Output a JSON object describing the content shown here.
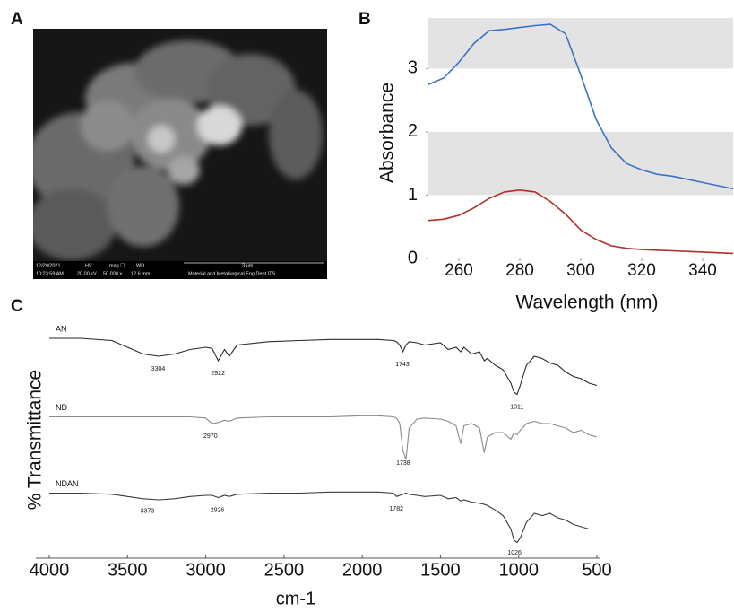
{
  "sem_image": {
    "panel_label": "A",
    "info_bar": [
      "12/29/2021",
      "10:23:59 AM",
      "HV",
      "20.00 kV",
      "mag ☐",
      "50 000 x",
      "WD",
      "12.6 mm",
      "3 μm",
      "Material and Metallurgical Eng Dept ITS"
    ]
  },
  "chart_data": [
    {
      "type": "line",
      "panel_label": "B",
      "y_label": "Absorbance",
      "x_label": "Wavelength (nm)",
      "x": [
        250,
        255,
        260,
        265,
        270,
        275,
        280,
        285,
        290,
        295,
        300,
        305,
        310,
        315,
        320,
        325,
        330,
        335,
        340,
        345,
        350
      ],
      "xlim": [
        250,
        350
      ],
      "xticks": [
        260,
        280,
        300,
        320,
        340
      ],
      "ylim": [
        0,
        3.8
      ],
      "yticks": [
        0,
        1,
        2,
        3
      ],
      "grid": "bands",
      "series": [
        {
          "color": "#3b73c4",
          "values": [
            2.75,
            2.85,
            3.1,
            3.4,
            3.6,
            3.62,
            3.65,
            3.68,
            3.7,
            3.55,
            2.9,
            2.2,
            1.75,
            1.5,
            1.4,
            1.33,
            1.3,
            1.25,
            1.2,
            1.15,
            1.1
          ]
        },
        {
          "color": "#b0302a",
          "values": [
            0.6,
            0.62,
            0.68,
            0.8,
            0.95,
            1.05,
            1.08,
            1.05,
            0.9,
            0.7,
            0.45,
            0.3,
            0.2,
            0.16,
            0.14,
            0.13,
            0.12,
            0.11,
            0.1,
            0.09,
            0.08
          ]
        }
      ]
    },
    {
      "type": "spectra",
      "panel_label": "C",
      "y_label": "% Transmittance",
      "x_label": "cm-1",
      "x": [
        4000,
        3800,
        3600,
        3500,
        3400,
        3300,
        3200,
        3100,
        3000,
        2960,
        2920,
        2880,
        2850,
        2800,
        2600,
        2400,
        2200,
        2000,
        1900,
        1800,
        1780,
        1760,
        1740,
        1720,
        1700,
        1650,
        1600,
        1500,
        1450,
        1400,
        1370,
        1350,
        1300,
        1250,
        1220,
        1200,
        1150,
        1100,
        1050,
        1030,
        1010,
        990,
        950,
        900,
        850,
        800,
        750,
        700,
        650,
        600,
        550,
        500
      ],
      "xlim": [
        4000,
        500
      ],
      "xticks": [
        4000,
        3500,
        3000,
        2500,
        2000,
        1500,
        1000,
        500
      ],
      "ylim": [
        0,
        100
      ],
      "series": [
        {
          "name": "AN",
          "color": "#2a2a2a",
          "peaks": [
            3304,
            2922,
            1743,
            1011
          ],
          "values": [
            94,
            94,
            93,
            90,
            87,
            86,
            87,
            89,
            90,
            89.5,
            84,
            89,
            86,
            91,
            92.5,
            93,
            93.5,
            93.5,
            93.5,
            93,
            92.5,
            91,
            88,
            91,
            92.5,
            92,
            91,
            92,
            89,
            90,
            88,
            90,
            87,
            88,
            84,
            85,
            82,
            80,
            74,
            70,
            69,
            73,
            82,
            86,
            85,
            83,
            82,
            79,
            77,
            76,
            74,
            73
          ]
        },
        {
          "name": "ND",
          "color": "#8a8a8a",
          "peaks": [
            2970,
            1738
          ],
          "values": [
            59,
            59,
            59,
            59,
            59,
            59,
            59,
            59,
            58.5,
            56,
            56.5,
            57.5,
            57,
            58.5,
            59,
            59,
            59,
            59.5,
            59.5,
            59,
            58.5,
            56,
            44,
            40,
            54,
            58,
            58.5,
            58,
            57,
            55,
            47,
            55,
            56,
            54,
            43,
            50,
            52,
            52,
            49,
            52,
            51,
            53,
            56,
            57,
            56,
            56,
            55,
            54,
            52,
            53,
            51,
            50
          ]
        },
        {
          "name": "NDAN",
          "color": "#3a3a3a",
          "peaks": [
            3373,
            2926,
            1782,
            1026
          ],
          "values": [
            25,
            25,
            24.5,
            23.5,
            22.5,
            22,
            22.5,
            23.5,
            24,
            24,
            23,
            24,
            23.5,
            24.5,
            25,
            25,
            25.5,
            25.5,
            25.5,
            25,
            23.5,
            24,
            24.5,
            25,
            24.5,
            24,
            23.5,
            24,
            22.5,
            23,
            21.5,
            22,
            21,
            20.5,
            20,
            19.5,
            17.5,
            15,
            9,
            4,
            3,
            5,
            12,
            16,
            15,
            16,
            14,
            13,
            11,
            10,
            9,
            9
          ]
        }
      ]
    }
  ]
}
